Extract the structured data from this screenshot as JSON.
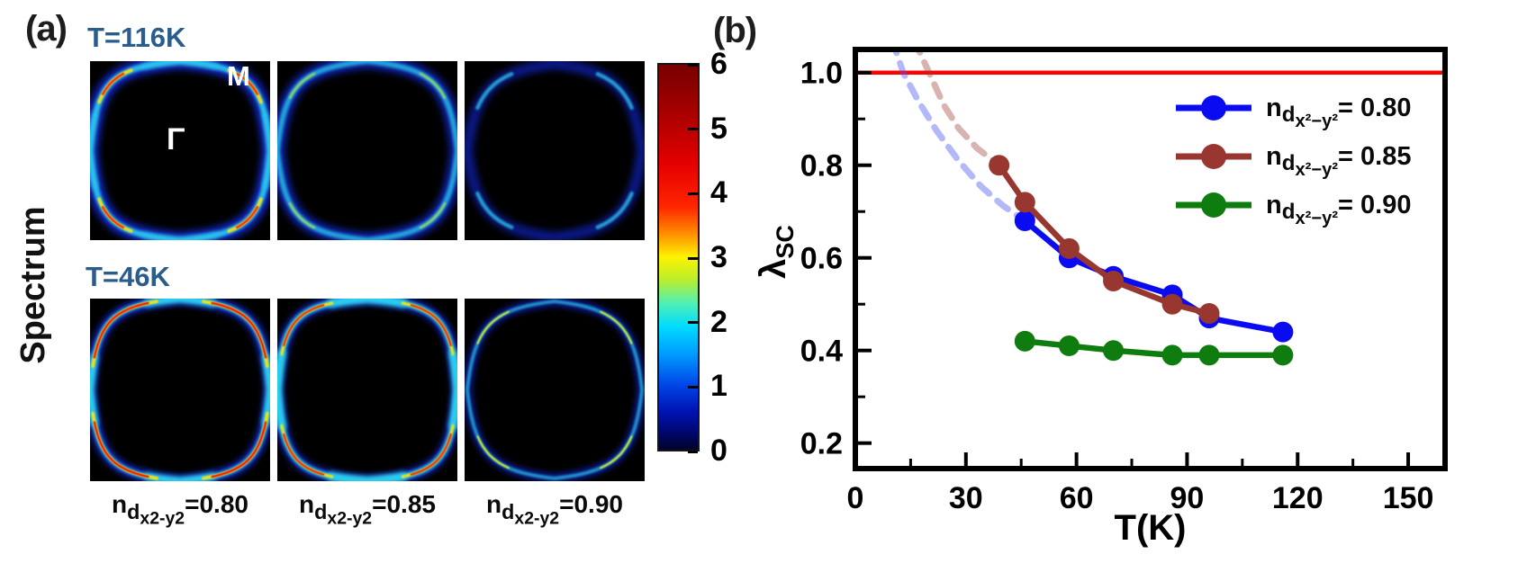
{
  "figure": {
    "panel_a": {
      "label": "(a)",
      "side_label": "Spectrum",
      "row_titles": [
        "T=116K",
        "T=46K"
      ],
      "title_color": "#2b5d8c",
      "m_label": "M",
      "gamma_label": "Γ",
      "fillings": [
        {
          "base": "n",
          "sub": "d",
          "subsub": "x2-y2",
          "eq": "=0.80"
        },
        {
          "base": "n",
          "sub": "d",
          "subsub": "x2-y2",
          "eq": "=0.85"
        },
        {
          "base": "n",
          "sub": "d",
          "subsub": "x2-y2",
          "eq": "=0.90"
        }
      ]
    },
    "panel_b": {
      "label": "(b)"
    }
  },
  "chart_data": [
    {
      "type": "heatmap",
      "title": "Spectrum",
      "panel_label": "(a)",
      "brillouin_labels": {
        "center": "Γ",
        "corner": "M"
      },
      "colorbar": {
        "min": 0,
        "max": 6,
        "ticks": [
          "6",
          "5",
          "4",
          "3",
          "2",
          "1",
          "0"
        ]
      },
      "rows": [
        {
          "temperature": "T=116K",
          "columns": [
            {
              "filling": "n_d(x2-y2)=0.80",
              "intensity": "bright cyan arcs, red/yellow hot spots on nodal diagonals"
            },
            {
              "filling": "n_d(x2-y2)=0.85",
              "intensity": "medium cyan arcs, faint yellow diagonal segments"
            },
            {
              "filling": "n_d(x2-y2)=0.90",
              "intensity": "faint blue arcs, small cyan diagonal segments"
            }
          ]
        },
        {
          "temperature": "T=46K",
          "columns": [
            {
              "filling": "n_d(x2-y2)=0.80",
              "intensity": "sharp red cores with yellow flanks over cyan arcs"
            },
            {
              "filling": "n_d(x2-y2)=0.85",
              "intensity": "sharp red/yellow arc cores, broad cyan tips"
            },
            {
              "filling": "n_d(x2-y2)=0.90",
              "intensity": "thin blue arcs with yellow-green diagonal segments"
            }
          ]
        }
      ]
    },
    {
      "type": "line",
      "panel_label": "(b)",
      "xlabel": "T(K)",
      "ylabel": {
        "base": "λ",
        "sub": "SC"
      },
      "xlim": [
        0,
        160
      ],
      "ylim": [
        0.145,
        1.05
      ],
      "x_ticks": [
        "0",
        "30",
        "60",
        "90",
        "120",
        "150"
      ],
      "x_minor_ticks": [
        15,
        45,
        75,
        105,
        135
      ],
      "y_ticks": [
        "0.2",
        "0.4",
        "0.6",
        "0.8",
        "1.0"
      ],
      "y_minor_ticks": [
        0.3,
        0.5,
        0.7,
        0.9
      ],
      "grid": false,
      "legend_position": "upper right",
      "reference_line": {
        "y": 1.0,
        "color": "#ff0000"
      },
      "series": [
        {
          "legend": {
            "base": "n",
            "sub": "d",
            "subsub": "x²−y²",
            "eq": "= 0.80"
          },
          "color": "#0b0bf2",
          "dash_color": "rgba(75,85,238,0.42)",
          "points": [
            [
              46,
              0.68
            ],
            [
              58,
              0.6
            ],
            [
              70,
              0.56
            ],
            [
              86,
              0.52
            ],
            [
              96,
              0.47
            ],
            [
              116,
              0.44
            ]
          ],
          "dashed_extrapolation": [
            [
              10,
              1.07
            ],
            [
              13,
              1.0
            ],
            [
              17,
              0.94
            ],
            [
              22,
              0.875
            ],
            [
              28,
              0.81
            ],
            [
              34,
              0.755
            ],
            [
              40,
              0.713
            ],
            [
              46,
              0.68
            ]
          ]
        },
        {
          "legend": {
            "base": "n",
            "sub": "d",
            "subsub": "x²−y²",
            "eq": "= 0.85"
          },
          "color": "#98372f",
          "dash_color": "rgba(152,55,47,0.38)",
          "points": [
            [
              39,
              0.8
            ],
            [
              46,
              0.72
            ],
            [
              58,
              0.62
            ],
            [
              70,
              0.55
            ],
            [
              86,
              0.5
            ],
            [
              96,
              0.48
            ]
          ],
          "dashed_extrapolation": [
            [
              16,
              1.07
            ],
            [
              20,
              1.0
            ],
            [
              24,
              0.93
            ],
            [
              28,
              0.88
            ],
            [
              33,
              0.837
            ],
            [
              39,
              0.8
            ]
          ]
        },
        {
          "legend": {
            "base": "n",
            "sub": "d",
            "subsub": "x²−y²",
            "eq": "= 0.90"
          },
          "color": "#0f7c0f",
          "points": [
            [
              46,
              0.42
            ],
            [
              58,
              0.41
            ],
            [
              70,
              0.4
            ],
            [
              86,
              0.39
            ],
            [
              96,
              0.39
            ],
            [
              116,
              0.39
            ]
          ]
        }
      ]
    }
  ]
}
